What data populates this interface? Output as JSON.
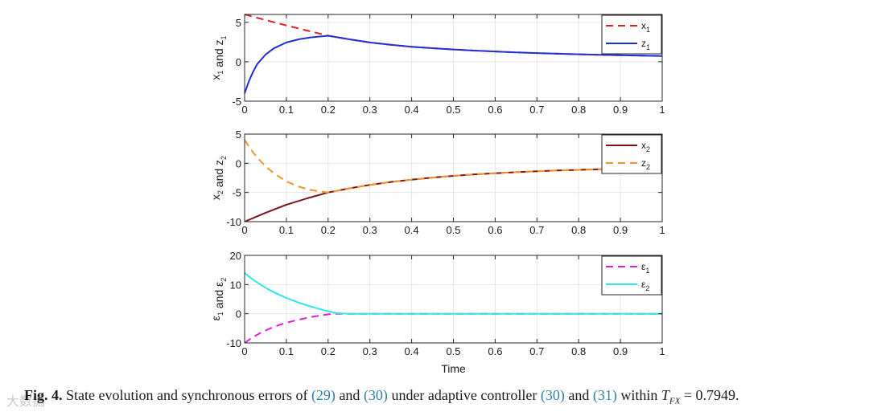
{
  "chart_data": [
    {
      "type": "line",
      "ylabel": "x₁ and z₁",
      "xlim": [
        0,
        1
      ],
      "ylim": [
        -5,
        6
      ],
      "xticks": [
        "0",
        "0.1",
        "0.2",
        "0.3",
        "0.4",
        "0.5",
        "0.6",
        "0.7",
        "0.8",
        "0.9",
        "1"
      ],
      "yticks": [
        "-5",
        "0",
        "5"
      ],
      "grid": true,
      "legend": "top-right",
      "series": [
        {
          "name": "x₁",
          "color": "#e02020",
          "style": "dashed",
          "x": [
            0,
            0.05,
            0.1,
            0.15,
            0.2,
            0.25,
            0.3,
            0.35,
            0.4,
            0.45,
            0.5,
            0.55,
            0.6,
            0.65,
            0.7,
            0.75,
            0.8,
            0.85,
            0.9,
            0.95,
            1
          ],
          "y": [
            6.0,
            5.3,
            4.6,
            3.95,
            3.3,
            2.85,
            2.45,
            2.15,
            1.9,
            1.72,
            1.56,
            1.42,
            1.3,
            1.19,
            1.1,
            1.02,
            0.95,
            0.89,
            0.83,
            0.78,
            0.73
          ]
        },
        {
          "name": "z₁",
          "color": "#1f2fd8",
          "style": "solid",
          "x": [
            0,
            0.01,
            0.02,
            0.03,
            0.05,
            0.07,
            0.1,
            0.13,
            0.16,
            0.2,
            0.25,
            0.3,
            0.35,
            0.4,
            0.45,
            0.5,
            0.55,
            0.6,
            0.65,
            0.7,
            0.75,
            0.8,
            0.85,
            0.9,
            0.95,
            1
          ],
          "y": [
            -4.0,
            -2.5,
            -1.3,
            -0.3,
            0.9,
            1.7,
            2.45,
            2.85,
            3.1,
            3.3,
            2.85,
            2.45,
            2.15,
            1.9,
            1.72,
            1.56,
            1.42,
            1.3,
            1.19,
            1.1,
            1.02,
            0.95,
            0.89,
            0.83,
            0.78,
            0.73
          ]
        }
      ]
    },
    {
      "type": "line",
      "ylabel": "x₂ and z₂",
      "xlim": [
        0,
        1
      ],
      "ylim": [
        -10,
        5
      ],
      "xticks": [
        "0",
        "0.1",
        "0.2",
        "0.3",
        "0.4",
        "0.5",
        "0.6",
        "0.7",
        "0.8",
        "0.9",
        "1"
      ],
      "yticks": [
        "-10",
        "-5",
        "0",
        "5"
      ],
      "grid": true,
      "legend": "top-right",
      "series": [
        {
          "name": "x₂",
          "color": "#7a1416",
          "style": "solid",
          "x": [
            0,
            0.05,
            0.1,
            0.15,
            0.2,
            0.25,
            0.3,
            0.35,
            0.4,
            0.45,
            0.5,
            0.55,
            0.6,
            0.65,
            0.7,
            0.75,
            0.8,
            0.85,
            0.9,
            0.95,
            1
          ],
          "y": [
            -10,
            -8.5,
            -7.1,
            -6.0,
            -5.0,
            -4.3,
            -3.7,
            -3.2,
            -2.8,
            -2.45,
            -2.15,
            -1.9,
            -1.7,
            -1.52,
            -1.37,
            -1.24,
            -1.12,
            -1.02,
            -0.93,
            -0.85,
            -0.78
          ]
        },
        {
          "name": "z₂",
          "color": "#f0952a",
          "style": "dashed",
          "x": [
            0,
            0.01,
            0.02,
            0.03,
            0.05,
            0.07,
            0.1,
            0.13,
            0.16,
            0.2,
            0.25,
            0.3,
            0.35,
            0.4,
            0.45,
            0.5,
            0.55,
            0.6,
            0.65,
            0.7,
            0.75,
            0.8,
            0.85,
            0.9,
            0.95,
            1
          ],
          "y": [
            4.0,
            2.9,
            1.9,
            1.0,
            -0.5,
            -1.7,
            -3.1,
            -4.0,
            -4.6,
            -5.0,
            -4.3,
            -3.7,
            -3.2,
            -2.8,
            -2.45,
            -2.15,
            -1.9,
            -1.7,
            -1.52,
            -1.37,
            -1.24,
            -1.12,
            -1.02,
            -0.93,
            -0.85,
            -0.78
          ]
        }
      ]
    },
    {
      "type": "line",
      "ylabel": "ε₁ and ε₂",
      "xlabel": "Time",
      "xlim": [
        0,
        1
      ],
      "ylim": [
        -10,
        20
      ],
      "xticks": [
        "0",
        "0.1",
        "0.2",
        "0.3",
        "0.4",
        "0.5",
        "0.6",
        "0.7",
        "0.8",
        "0.9",
        "1"
      ],
      "yticks": [
        "-10",
        "0",
        "10",
        "20"
      ],
      "grid": true,
      "legend": "top-right",
      "series": [
        {
          "name": "ε₁",
          "color": "#e020d8",
          "style": "dashed",
          "x": [
            0,
            0.01,
            0.02,
            0.04,
            0.06,
            0.08,
            0.1,
            0.13,
            0.16,
            0.19,
            0.21,
            0.25,
            0.3,
            0.4,
            0.5,
            0.6,
            0.7,
            0.8,
            0.9,
            1
          ],
          "y": [
            -10,
            -9.0,
            -8.0,
            -6.4,
            -5.1,
            -4.0,
            -3.1,
            -2.0,
            -1.1,
            -0.4,
            0,
            0,
            0,
            0,
            0,
            0,
            0,
            0,
            0,
            0
          ]
        },
        {
          "name": "ε₂",
          "color": "#2ee6ea",
          "style": "solid",
          "x": [
            0,
            0.01,
            0.02,
            0.04,
            0.06,
            0.08,
            0.1,
            0.13,
            0.16,
            0.19,
            0.22,
            0.25,
            0.3,
            0.4,
            0.5,
            0.6,
            0.7,
            0.8,
            0.9,
            1
          ],
          "y": [
            14,
            12.8,
            11.7,
            9.8,
            8.1,
            6.7,
            5.4,
            3.8,
            2.4,
            1.2,
            0.2,
            0,
            0,
            0,
            0,
            0,
            0,
            0,
            0,
            0
          ]
        }
      ]
    }
  ],
  "caption": {
    "label": "Fig. 4.",
    "text_before": "State evolution and synchronous errors of ",
    "ref1": "(29)",
    "and1": " and ",
    "ref2": "(30)",
    "text_mid": " under adaptive controller ",
    "ref3": "(30)",
    "and2": " and ",
    "ref4": "(31)",
    "text_within": " within ",
    "symbol": "T",
    "symbol_sub": "FX",
    "value_text": " = 0.7949."
  },
  "watermark": "大数据"
}
